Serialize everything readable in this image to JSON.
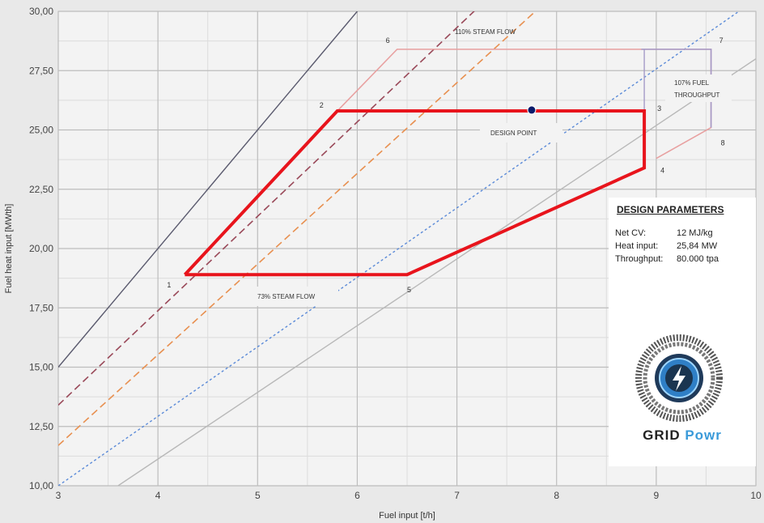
{
  "chart_data": {
    "type": "line",
    "xlabel": "Fuel input [t/h]",
    "ylabel": "Fuel heat input [MWth]",
    "xlim": [
      3,
      10
    ],
    "ylim": [
      10,
      30
    ],
    "x_ticks": [
      "3",
      "4",
      "5",
      "6",
      "7",
      "8",
      "9",
      "10"
    ],
    "y_ticks": [
      "10,00",
      "12,50",
      "15,00",
      "17,50",
      "20,00",
      "22,50",
      "25,00",
      "27,50",
      "30,00"
    ],
    "grid": true,
    "reference_lines": [
      {
        "style": "solid",
        "color": "#5a5a6e",
        "points": [
          [
            3,
            15.0
          ],
          [
            6.0,
            30.0
          ]
        ]
      },
      {
        "style": "dashed",
        "color": "#9a4a5a",
        "points": [
          [
            3,
            13.4
          ],
          [
            7.8,
            32.5
          ]
        ]
      },
      {
        "style": "dashed",
        "color": "#e89050",
        "points": [
          [
            3,
            11.7
          ],
          [
            9.2,
            35.4
          ]
        ]
      },
      {
        "style": "dotted",
        "color": "#5a8ad8",
        "points": [
          [
            3,
            10.0
          ],
          [
            10,
            30.5
          ]
        ]
      },
      {
        "style": "solid",
        "color": "#b8b8b8",
        "points": [
          [
            3.6,
            10.0
          ],
          [
            10,
            28.0
          ]
        ]
      }
    ],
    "operating_envelope": {
      "color": "#e8141c",
      "points": [
        [
          4.27,
          18.9
        ],
        [
          5.8,
          25.8
        ],
        [
          8.88,
          25.8
        ],
        [
          8.88,
          23.4
        ],
        [
          6.5,
          18.9
        ],
        [
          4.27,
          18.9
        ]
      ],
      "point_labels": [
        "1",
        "2",
        "3",
        "4",
        "5"
      ]
    },
    "extended_envelope": {
      "color": "#e8a0a0",
      "points": [
        [
          5.8,
          25.8
        ],
        [
          6.4,
          28.4
        ],
        [
          9.55,
          28.4
        ],
        [
          9.55,
          25.1
        ],
        [
          9.0,
          23.8
        ]
      ],
      "point_labels": [
        "6",
        "7",
        "8"
      ]
    },
    "design_point": {
      "x": 7.75,
      "y": 25.84,
      "label": "DESIGN POINT",
      "color": "#0a1a6a"
    },
    "annotations": [
      "110% STEAM FLOW",
      "107% FUEL",
      "THROUGHPUT",
      "73% STEAM FLOW"
    ]
  },
  "params": {
    "title": "DESIGN PARAMETERS",
    "rows": [
      {
        "label": "Net CV:",
        "value": "12 MJ/kg"
      },
      {
        "label": "Heat input:",
        "value": "25,84 MW"
      },
      {
        "label": "Throughput:",
        "value": "80.000 tpa"
      }
    ]
  },
  "brand": {
    "part1": "GRID",
    "part2": "Powr",
    "icon": "lightning-bolt-icon"
  }
}
